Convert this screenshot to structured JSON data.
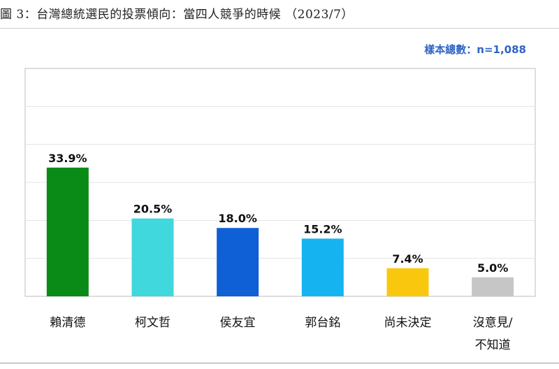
{
  "figure": {
    "title": "圖 3：台灣總統選民的投票傾向：當四人競爭的時候 （2023/7）",
    "sample_note": "樣本總數：n=1,088"
  },
  "chart_data": {
    "type": "bar",
    "categories": [
      "賴清德",
      "柯文哲",
      "侯友宜",
      "郭台銘",
      "尚未決定",
      "沒意見/\n不知道"
    ],
    "values": [
      33.9,
      20.5,
      18.0,
      15.2,
      7.4,
      5.0
    ],
    "value_labels": [
      "33.9%",
      "20.5%",
      "18.0%",
      "15.2%",
      "7.4%",
      "5.0%"
    ],
    "colors": [
      "#0a8a16",
      "#40d7dd",
      "#0f5fd6",
      "#15b4f0",
      "#f9c80e",
      "#c6c6c6"
    ],
    "ylim": [
      0,
      60
    ],
    "grid": true,
    "legend": "none"
  }
}
